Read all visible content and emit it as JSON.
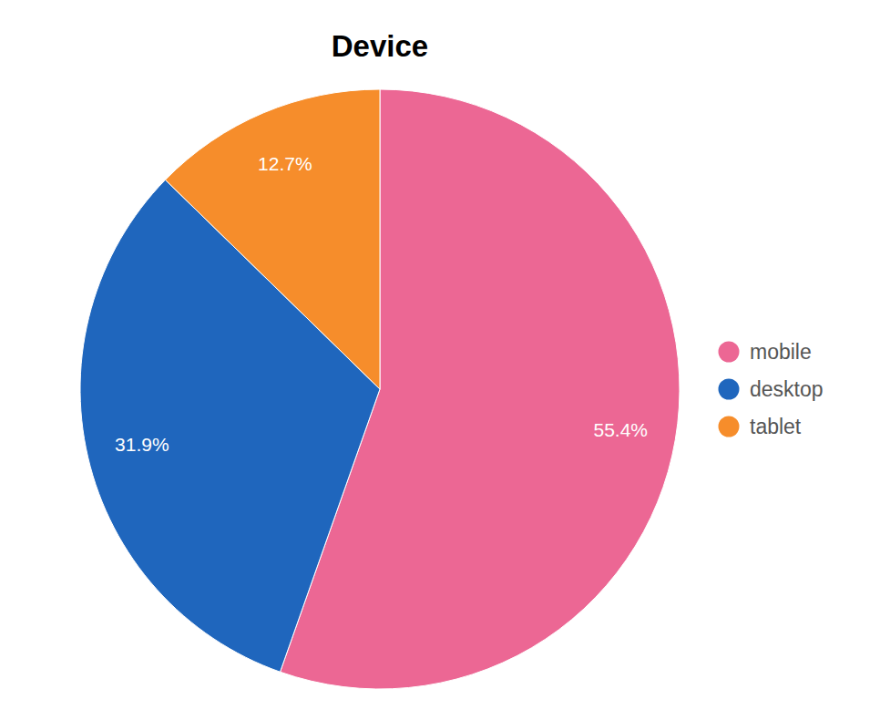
{
  "chart_data": {
    "type": "pie",
    "title": "Device",
    "categories": [
      "mobile",
      "desktop",
      "tablet"
    ],
    "values": [
      55.4,
      31.9,
      12.7
    ],
    "value_labels": [
      "55.4%",
      "31.9%",
      "12.7%"
    ],
    "colors": [
      "#ec6794",
      "#1f66bd",
      "#f68d2b"
    ],
    "data_labels": true,
    "legend": "right"
  }
}
